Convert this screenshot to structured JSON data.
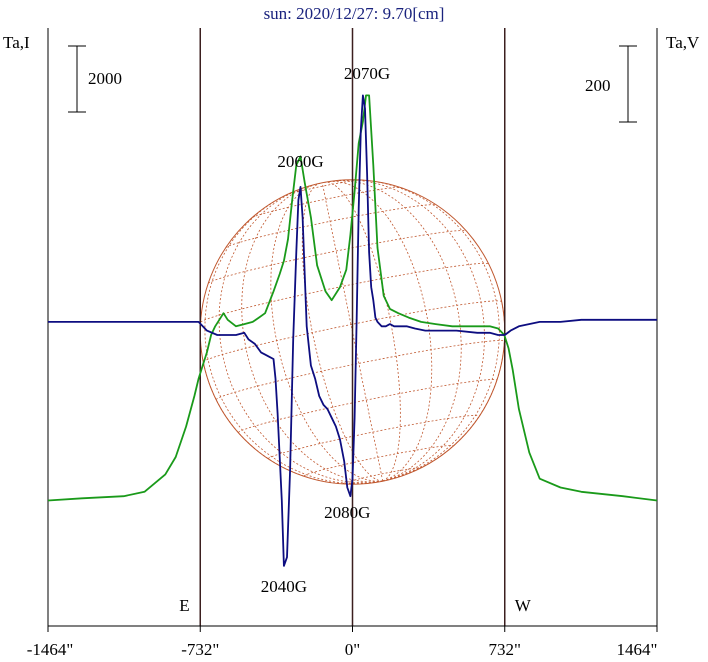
{
  "colors": {
    "background": "#ffffff",
    "title": "#1a237e",
    "frame": "#000000",
    "limb_lines": "#3b1f1f",
    "grid": "#c0582f",
    "intensity": "#1a9a1a",
    "polarization": "#0d0d80"
  },
  "chart_data": {
    "type": "line",
    "title": "sun: 2020/12/27: 9.70[cm]",
    "ylabel_left": "Ta,I",
    "ylabel_right": "Ta,V",
    "xlim": [
      -1464,
      1464
    ],
    "x_ticks": [
      -1464,
      -732,
      0,
      732,
      1464
    ],
    "x_tick_labels": [
      "-1464\"",
      "-732\"",
      "0\"",
      "732\"",
      "1464\""
    ],
    "scale_bar_left": "2000",
    "scale_bar_right": "200",
    "limb_marks": [
      {
        "label": "E",
        "x": -732
      },
      {
        "label": "W",
        "x": 732
      }
    ],
    "source_labels": [
      {
        "label": "2070G",
        "x": 70,
        "y": 0.96,
        "anchor": "top"
      },
      {
        "label": "2060G",
        "x": -250,
        "y": 0.76,
        "anchor": "top"
      },
      {
        "label": "2080G",
        "x": -25,
        "y": 0.04,
        "anchor": "bottom"
      },
      {
        "label": "2040G",
        "x": -330,
        "y": -0.13,
        "anchor": "bottom"
      }
    ],
    "y_range_normalized": [
      -0.18,
      1.0
    ],
    "series": [
      {
        "key": "intensity",
        "color": "#1a9a1a",
        "x": [
          -1464,
          -1300,
          -1100,
          -1000,
          -900,
          -850,
          -800,
          -760,
          -740,
          -720,
          -700,
          -680,
          -660,
          -620,
          -600,
          -560,
          -520,
          -480,
          -450,
          -420,
          -380,
          -350,
          -330,
          -310,
          -290,
          -270,
          -250,
          -230,
          -200,
          -170,
          -130,
          -100,
          -60,
          -30,
          -10,
          10,
          30,
          50,
          65,
          80,
          100,
          120,
          150,
          180,
          220,
          270,
          330,
          400,
          480,
          560,
          620,
          660,
          700,
          730,
          750,
          770,
          800,
          850,
          900,
          1000,
          1100,
          1300,
          1464
        ],
        "y": [
          0.03,
          0.035,
          0.04,
          0.05,
          0.09,
          0.13,
          0.2,
          0.27,
          0.31,
          0.34,
          0.37,
          0.41,
          0.43,
          0.46,
          0.445,
          0.43,
          0.435,
          0.44,
          0.45,
          0.46,
          0.51,
          0.55,
          0.58,
          0.63,
          0.72,
          0.8,
          0.82,
          0.76,
          0.68,
          0.57,
          0.51,
          0.49,
          0.52,
          0.56,
          0.64,
          0.74,
          0.85,
          0.9,
          0.96,
          0.96,
          0.8,
          0.61,
          0.5,
          0.47,
          0.46,
          0.45,
          0.44,
          0.435,
          0.43,
          0.43,
          0.43,
          0.43,
          0.425,
          0.41,
          0.38,
          0.33,
          0.24,
          0.14,
          0.08,
          0.06,
          0.05,
          0.04,
          0.03
        ]
      },
      {
        "key": "polarization",
        "color": "#0d0d80",
        "x": [
          -1464,
          -1100,
          -900,
          -800,
          -740,
          -700,
          -650,
          -600,
          -560,
          -520,
          -500,
          -470,
          -440,
          -420,
          -400,
          -380,
          -370,
          -360,
          -350,
          -340,
          -330,
          -315,
          -300,
          -285,
          -270,
          -260,
          -250,
          -240,
          -230,
          -220,
          -200,
          -180,
          -160,
          -140,
          -120,
          -100,
          -80,
          -60,
          -40,
          -25,
          -10,
          0,
          10,
          20,
          30,
          40,
          50,
          60,
          70,
          80,
          90,
          100,
          110,
          120,
          140,
          160,
          180,
          200,
          230,
          260,
          300,
          350,
          400,
          450,
          500,
          600,
          660,
          700,
          732,
          760,
          800,
          900,
          1000,
          1100,
          1300,
          1464
        ],
        "y": [
          0.44,
          0.44,
          0.44,
          0.44,
          0.44,
          0.42,
          0.41,
          0.41,
          0.41,
          0.415,
          0.4,
          0.39,
          0.37,
          0.365,
          0.36,
          0.355,
          0.31,
          0.23,
          0.13,
          0.03,
          -0.12,
          -0.1,
          0.1,
          0.4,
          0.6,
          0.72,
          0.75,
          0.68,
          0.55,
          0.43,
          0.34,
          0.31,
          0.27,
          0.25,
          0.24,
          0.22,
          0.2,
          0.17,
          0.12,
          0.06,
          0.04,
          0.08,
          0.22,
          0.45,
          0.7,
          0.88,
          0.96,
          0.93,
          0.78,
          0.6,
          0.52,
          0.49,
          0.45,
          0.44,
          0.43,
          0.43,
          0.435,
          0.43,
          0.43,
          0.43,
          0.425,
          0.42,
          0.42,
          0.42,
          0.42,
          0.415,
          0.415,
          0.41,
          0.41,
          0.42,
          0.43,
          0.44,
          0.44,
          0.445,
          0.445,
          0.445
        ]
      }
    ]
  }
}
